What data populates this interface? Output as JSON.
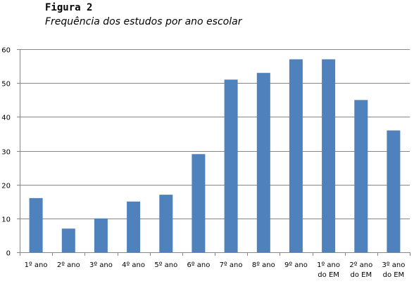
{
  "figure": {
    "label": "Figura 2",
    "title": "Frequência dos estudos por ano escolar"
  },
  "chart_data": {
    "type": "bar",
    "title": "Frequência dos estudos por ano escolar",
    "xlabel": "",
    "ylabel": "",
    "categories": [
      [
        "1º ano"
      ],
      [
        "2º ano"
      ],
      [
        "3º ano"
      ],
      [
        "4º ano"
      ],
      [
        "5º ano"
      ],
      [
        "6º ano"
      ],
      [
        "7º ano"
      ],
      [
        "8º ano"
      ],
      [
        "9º ano"
      ],
      [
        "1º ano",
        "do EM"
      ],
      [
        "2º ano",
        "do EM"
      ],
      [
        "3º ano",
        "do EM"
      ]
    ],
    "values": [
      16,
      7,
      10,
      15,
      17,
      29,
      51,
      53,
      57,
      57,
      45,
      36
    ],
    "ylim": [
      0,
      60
    ],
    "yticks": [
      0,
      10,
      20,
      30,
      40,
      50,
      60
    ],
    "grid": true,
    "legend": "none",
    "colors": {
      "bar": "#4F81BD",
      "grid": "#868686",
      "axis": "#868686"
    }
  }
}
